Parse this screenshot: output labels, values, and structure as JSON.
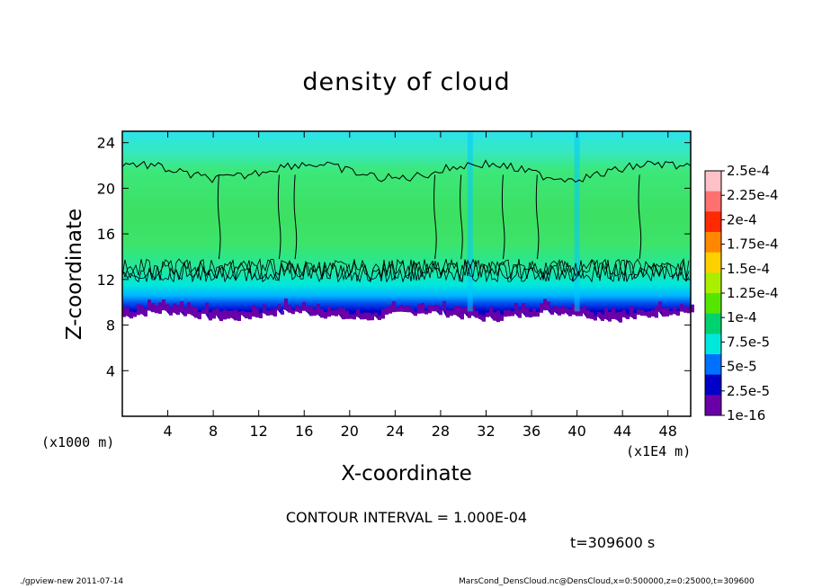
{
  "chart_data": {
    "type": "heatmap",
    "title": "density of cloud",
    "xlabel": "X-coordinate",
    "ylabel": "Z-coordinate",
    "x_unit": "(x1E4 m)",
    "y_unit": "(x1000 m)",
    "xlim": [
      0,
      50
    ],
    "ylim": [
      0,
      25
    ],
    "x_ticks": [
      "4",
      "8",
      "12",
      "16",
      "20",
      "24",
      "28",
      "32",
      "36",
      "40",
      "44",
      "48"
    ],
    "y_ticks": [
      "4",
      "8",
      "12",
      "16",
      "20",
      "24"
    ],
    "colorbar": {
      "labels": [
        "2.5e-4",
        "2.25e-4",
        "2e-4",
        "1.75e-4",
        "1.5e-4",
        "1.25e-4",
        "1e-4",
        "7.5e-5",
        "5e-5",
        "2.5e-5",
        "1e-16"
      ],
      "colors": [
        "#ffc0c8",
        "#ff7070",
        "#ff2a00",
        "#ff8800",
        "#ffd000",
        "#aaee00",
        "#55e600",
        "#00d26e",
        "#00e8dc",
        "#0070ff",
        "#0000c8",
        "#6a00a8"
      ]
    },
    "contour_interval": "CONTOUR INTERVAL = 1.000E-04",
    "contour_level": 0.0001,
    "cloud_base_z": [
      8.5,
      9.5
    ],
    "cloud_top_z": 24.5,
    "contour_band_z": [
      11.8,
      13.8
    ],
    "tall_column_tops_z": [
      21.5,
      22.3
    ],
    "colors": {
      "upper_cloud": "#33e8c0",
      "core_cloud": "#3ce062",
      "transition": "#00e8dc",
      "lower_blue": "#0070ff",
      "dark_blue": "#0000c8",
      "base_purple": "#6a00a8"
    }
  },
  "time_label": "t=309600 s",
  "footer": {
    "left": "./gpview-new   2011-07-14",
    "right": "MarsCond_DensCloud.nc@DensCloud,x=0:500000,z=0:25000,t=309600"
  }
}
